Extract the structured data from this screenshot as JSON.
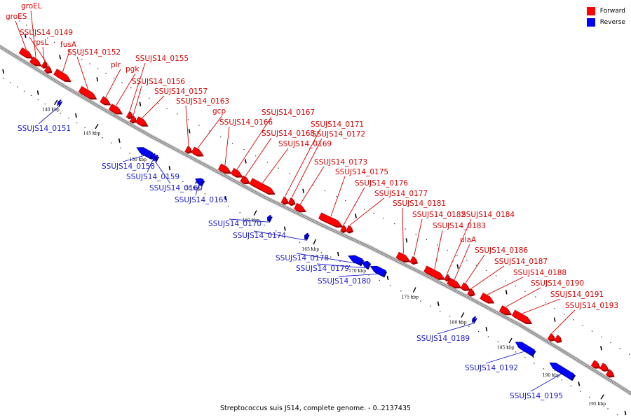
{
  "caption": "Streptococcus suis JS14, complete genome. - 0..2137435",
  "legend": [
    {
      "label": "Forward",
      "color": "#ff0000"
    },
    {
      "label": "Reverse",
      "color": "#0000ff"
    }
  ],
  "colors": {
    "forward": "#ff0000",
    "reverse": "#0000ff",
    "backbone": "#888888"
  },
  "genome": {
    "scale_unit": "kbp"
  },
  "ticks": [
    {
      "label": "140 kbp",
      "kb": 140
    },
    {
      "label": "145 kbp",
      "kb": 145
    },
    {
      "label": "150 kbp",
      "kb": 150
    },
    {
      "label": "155 kbp",
      "kb": 155
    },
    {
      "label": "160 kbp",
      "kb": 160
    },
    {
      "label": "165 kbp",
      "kb": 165
    },
    {
      "label": "170 kbp",
      "kb": 170
    },
    {
      "label": "175 kbp",
      "kb": 175
    },
    {
      "label": "180 kbp",
      "kb": 180
    },
    {
      "label": "185 kbp",
      "kb": 185
    },
    {
      "label": "190 kbp",
      "kb": 190
    },
    {
      "label": "195 kbp",
      "kb": 195
    }
  ],
  "forward_genes": [
    {
      "name": "groES",
      "kb_start": 133.0,
      "kb_end": 134.6
    },
    {
      "name": "groEL",
      "kb_start": 134.7,
      "kb_end": 136.0
    },
    {
      "name": "rpsL",
      "kb_start": 136.2,
      "kb_end": 136.6
    },
    {
      "name": "SSUJS14_0149",
      "kb_start": 136.8,
      "kb_end": 137.5
    },
    {
      "name": "fusA",
      "kb_start": 138.0,
      "kb_end": 140.1
    },
    {
      "name": "SSUJS14_0152",
      "kb_start": 141.5,
      "kb_end": 143.4
    },
    {
      "name": "plr",
      "kb_start": 144.0,
      "kb_end": 145.0
    },
    {
      "name": "pgk",
      "kb_start": 145.2,
      "kb_end": 146.4
    },
    {
      "name": "SSUJS14_0155",
      "kb_start": 147.0,
      "kb_end": 147.4
    },
    {
      "name": "SSUJS14_0156",
      "kb_start": 147.5,
      "kb_end": 147.9
    },
    {
      "name": "SSUJS14_0157",
      "kb_start": 148.0,
      "kb_end": 149.1
    },
    {
      "name": "SSUJS14_0163",
      "kb_start": 153.0,
      "kb_end": 153.4
    },
    {
      "name": "gcp",
      "kb_start": 153.5,
      "kb_end": 154.4
    },
    {
      "name": "SSUJS14_0166",
      "kb_start": 156.0,
      "kb_end": 156.9
    },
    {
      "name": "SSUJS14_0167",
      "kb_start": 157.0,
      "kb_end": 157.8
    },
    {
      "name": "SSUJS14_0168",
      "kb_start": 157.9,
      "kb_end": 158.5
    },
    {
      "name": "SSUJS14_0169",
      "kb_start": 158.6,
      "kb_end": 160.6
    },
    {
      "name": "SSUJS14_0171",
      "kb_start": 161.4,
      "kb_end": 161.8
    },
    {
      "name": "SSUJS14_0172",
      "kb_start": 161.9,
      "kb_end": 162.3
    },
    {
      "name": "SSUJS14_0173",
      "kb_start": 162.5,
      "kb_end": 163.3
    },
    {
      "name": "SSUJS14_0175",
      "kb_start": 164.5,
      "kb_end": 166.7
    },
    {
      "name": "SSUJS14_0176",
      "kb_start": 166.8,
      "kb_end": 167.2
    },
    {
      "name": "SSUJS14_0177",
      "kb_start": 167.3,
      "kb_end": 167.8
    },
    {
      "name": "SSUJS14_0181",
      "kb_start": 172.4,
      "kb_end": 173.5
    },
    {
      "name": "SSUJS14_0182",
      "kb_start": 173.6,
      "kb_end": 174.1
    },
    {
      "name": "SSUJS14_0183",
      "kb_start": 175.0,
      "kb_end": 176.9
    },
    {
      "name": "SSUJS14_0184",
      "kb_start": 177.0,
      "kb_end": 177.3
    },
    {
      "name": "ulaA",
      "kb_start": 177.4,
      "kb_end": 178.6
    },
    {
      "name": "SSUJS14_0186",
      "kb_start": 178.7,
      "kb_end": 179.4
    },
    {
      "name": "SSUJS14_0187",
      "kb_start": 179.5,
      "kb_end": 180.0
    },
    {
      "name": "SSUJS14_0188",
      "kb_start": 180.7,
      "kb_end": 181.9
    },
    {
      "name": "SSUJS14_0190",
      "kb_start": 182.8,
      "kb_end": 183.8
    },
    {
      "name": "SSUJS14_0191",
      "kb_start": 184.0,
      "kb_end": 185.8
    },
    {
      "name": "SSUJS14_0193",
      "kb_start": 187.9,
      "kb_end": 188.4
    },
    {
      "name": "",
      "kb_start": 188.5,
      "kb_end": 189.0
    },
    {
      "name": "",
      "kb_start": 192.6,
      "kb_end": 193.3
    },
    {
      "name": "",
      "kb_start": 193.4,
      "kb_end": 194.1
    },
    {
      "name": "",
      "kb_start": 194.2,
      "kb_end": 194.8
    }
  ],
  "reverse_genes": [
    {
      "name": "SSUJS14_0151",
      "kb_start": 140.15,
      "kb_end": 140.35
    },
    {
      "name": "SSUJS14_0158",
      "kb_start": 149.3,
      "kb_end": 150.7
    },
    {
      "name": "SSUJS14_0159",
      "kb_start": 150.75,
      "kb_end": 150.95
    },
    {
      "name": "SSUJS14_0160",
      "kb_start": 151.0,
      "kb_end": 151.2
    },
    {
      "name": "SSUJS14_0165",
      "kb_start": 154.8,
      "kb_end": 155.4
    },
    {
      "name": "SSUJS14_0170",
      "kb_start": 160.95,
      "kb_end": 161.15
    },
    {
      "name": "SSUJS14_0174",
      "kb_start": 164.1,
      "kb_end": 164.3
    },
    {
      "name": "SSUJS14_0178",
      "kb_start": 168.5,
      "kb_end": 169.9
    },
    {
      "name": "SSUJS14_0179",
      "kb_start": 170.0,
      "kb_end": 170.6
    },
    {
      "name": "SSUJS14_0180",
      "kb_start": 170.8,
      "kb_end": 172.1
    },
    {
      "name": "SSUJS14_0189",
      "kb_start": 180.95,
      "kb_end": 181.15
    },
    {
      "name": "SSUJS14_0192",
      "kb_start": 185.5,
      "kb_end": 187.4
    },
    {
      "name": "SSUJS14_0195",
      "kb_start": 189.2,
      "kb_end": 191.7
    }
  ]
}
